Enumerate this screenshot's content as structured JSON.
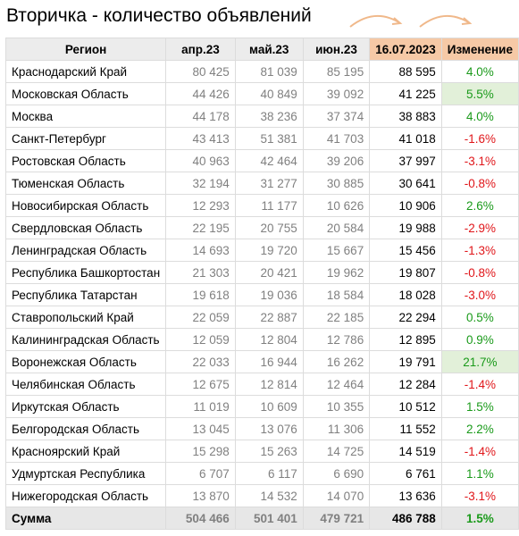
{
  "title": "Вторичка - количество объявлений",
  "colors": {
    "positive": "#1a9a1a",
    "negative": "#e0161a",
    "header_accent": "#f6c9a6",
    "highlight": "#e2f0d9",
    "arrow": "#f0b88a"
  },
  "chart_data": {
    "type": "table",
    "columns": [
      "Регион",
      "апр.23",
      "май.23",
      "июн.23",
      "16.07.2023",
      "Изменение"
    ],
    "rows": [
      {
        "region": "Краснодарский Край",
        "apr": "80 425",
        "may": "81 039",
        "jun": "85 195",
        "cur": "88 595",
        "change": "4.0%",
        "sign": "pos",
        "highlight": false
      },
      {
        "region": "Московская Область",
        "apr": "44 426",
        "may": "40 849",
        "jun": "39 092",
        "cur": "41 225",
        "change": "5.5%",
        "sign": "pos",
        "highlight": true
      },
      {
        "region": "Москва",
        "apr": "44 178",
        "may": "38 236",
        "jun": "37 374",
        "cur": "38 883",
        "change": "4.0%",
        "sign": "pos",
        "highlight": false
      },
      {
        "region": "Санкт-Петербург",
        "apr": "43 413",
        "may": "51 381",
        "jun": "41 703",
        "cur": "41 018",
        "change": "-1.6%",
        "sign": "neg",
        "highlight": false
      },
      {
        "region": "Ростовская Область",
        "apr": "40 963",
        "may": "42 464",
        "jun": "39 206",
        "cur": "37 997",
        "change": "-3.1%",
        "sign": "neg",
        "highlight": false
      },
      {
        "region": "Тюменская Область",
        "apr": "32 194",
        "may": "31 277",
        "jun": "30 885",
        "cur": "30 641",
        "change": "-0.8%",
        "sign": "neg",
        "highlight": false
      },
      {
        "region": "Новосибирская Область",
        "apr": "12 293",
        "may": "11 177",
        "jun": "10 626",
        "cur": "10 906",
        "change": "2.6%",
        "sign": "pos",
        "highlight": false
      },
      {
        "region": "Свердловская Область",
        "apr": "22 195",
        "may": "20 755",
        "jun": "20 584",
        "cur": "19 988",
        "change": "-2.9%",
        "sign": "neg",
        "highlight": false
      },
      {
        "region": "Ленинградская Область",
        "apr": "14 693",
        "may": "19 720",
        "jun": "15 667",
        "cur": "15 456",
        "change": "-1.3%",
        "sign": "neg",
        "highlight": false
      },
      {
        "region": "Республика Башкортостан",
        "apr": "21 303",
        "may": "20 421",
        "jun": "19 962",
        "cur": "19 807",
        "change": "-0.8%",
        "sign": "neg",
        "highlight": false
      },
      {
        "region": "Республика Татарстан",
        "apr": "19 618",
        "may": "19 036",
        "jun": "18 584",
        "cur": "18 028",
        "change": "-3.0%",
        "sign": "neg",
        "highlight": false
      },
      {
        "region": "Ставропольский Край",
        "apr": "22 059",
        "may": "22 887",
        "jun": "22 185",
        "cur": "22 294",
        "change": "0.5%",
        "sign": "pos",
        "highlight": false
      },
      {
        "region": "Калининградская Область",
        "apr": "12 059",
        "may": "12 804",
        "jun": "12 786",
        "cur": "12 895",
        "change": "0.9%",
        "sign": "pos",
        "highlight": false
      },
      {
        "region": "Воронежская Область",
        "apr": "22 033",
        "may": "16 944",
        "jun": "16 262",
        "cur": "19 791",
        "change": "21.7%",
        "sign": "pos",
        "highlight": true
      },
      {
        "region": "Челябинская Область",
        "apr": "12 675",
        "may": "12 814",
        "jun": "12 464",
        "cur": "12 284",
        "change": "-1.4%",
        "sign": "neg",
        "highlight": false
      },
      {
        "region": "Иркутская Область",
        "apr": "11 019",
        "may": "10 609",
        "jun": "10 355",
        "cur": "10 512",
        "change": "1.5%",
        "sign": "pos",
        "highlight": false
      },
      {
        "region": "Белгородская Область",
        "apr": "13 045",
        "may": "13 076",
        "jun": "11 306",
        "cur": "11 552",
        "change": "2.2%",
        "sign": "pos",
        "highlight": false
      },
      {
        "region": "Красноярский Край",
        "apr": "15 298",
        "may": "15 263",
        "jun": "14 725",
        "cur": "14 519",
        "change": "-1.4%",
        "sign": "neg",
        "highlight": false
      },
      {
        "region": "Удмуртская Республика",
        "apr": "6 707",
        "may": "6 117",
        "jun": "6 690",
        "cur": "6 761",
        "change": "1.1%",
        "sign": "pos",
        "highlight": false
      },
      {
        "region": "Нижегородская Область",
        "apr": "13 870",
        "may": "14 532",
        "jun": "14 070",
        "cur": "13 636",
        "change": "-3.1%",
        "sign": "neg",
        "highlight": false
      }
    ],
    "total": {
      "region": "Сумма",
      "apr": "504 466",
      "may": "501 401",
      "jun": "479 721",
      "cur": "486 788",
      "change": "1.5%",
      "sign": "pos"
    }
  }
}
